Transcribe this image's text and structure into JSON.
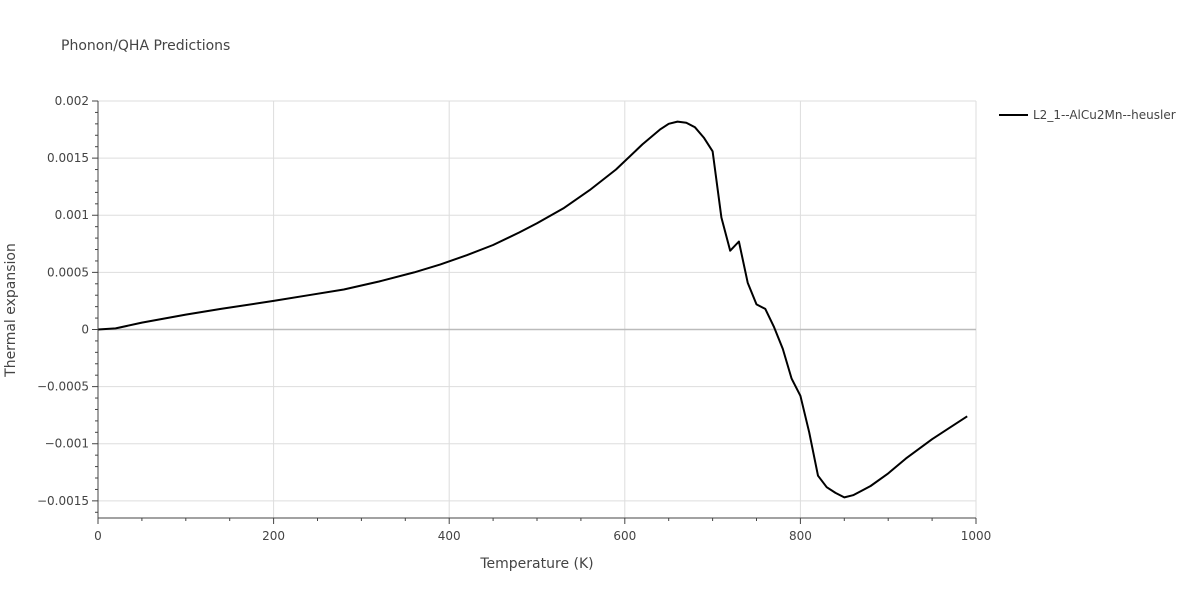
{
  "chart_data": {
    "type": "line",
    "title": "Phonon/QHA Predictions",
    "xlabel": "Temperature (K)",
    "ylabel": "Thermal expansion",
    "xlim": [
      0,
      1000
    ],
    "ylim": [
      -0.00165,
      0.002
    ],
    "x_ticks": [
      0,
      200,
      400,
      600,
      800,
      1000
    ],
    "x_tick_labels": [
      "0",
      "200",
      "400",
      "600",
      "800",
      "1000"
    ],
    "y_ticks": [
      -0.0015,
      -0.001,
      -0.0005,
      0,
      0.0005,
      0.001,
      0.0015,
      0.002
    ],
    "y_tick_labels": [
      "−0.0015",
      "−0.001",
      "−0.0005",
      "0",
      "0.0005",
      "0.001",
      "0.0015",
      "0.002"
    ],
    "grid": true,
    "legend_position": "top-right outside",
    "series": [
      {
        "name": "L2_1--AlCu2Mn--heusler",
        "color": "#000000",
        "x": [
          0,
          20,
          50,
          100,
          140,
          200,
          240,
          280,
          320,
          360,
          390,
          420,
          450,
          480,
          500,
          530,
          560,
          590,
          620,
          640,
          650,
          660,
          670,
          680,
          690,
          700,
          710,
          720,
          730,
          740,
          750,
          760,
          770,
          780,
          790,
          800,
          810,
          820,
          830,
          840,
          850,
          860,
          870,
          880,
          900,
          920,
          950,
          970,
          990
        ],
        "y": [
          0,
          1e-05,
          6e-05,
          0.00013,
          0.00018,
          0.00025,
          0.0003,
          0.00035,
          0.00042,
          0.0005,
          0.00057,
          0.00065,
          0.00074,
          0.00085,
          0.00093,
          0.00106,
          0.00122,
          0.0014,
          0.00162,
          0.00175,
          0.0018,
          0.00182,
          0.00181,
          0.00177,
          0.00168,
          0.00156,
          0.00098,
          0.00069,
          0.00077,
          0.00041,
          0.00022,
          0.00018,
          2e-05,
          -0.00017,
          -0.00043,
          -0.00058,
          -0.0009,
          -0.00128,
          -0.00138,
          -0.00143,
          -0.00147,
          -0.00145,
          -0.00141,
          -0.00137,
          -0.00126,
          -0.00113,
          -0.00096,
          -0.00086,
          -0.00076
        ]
      }
    ]
  }
}
